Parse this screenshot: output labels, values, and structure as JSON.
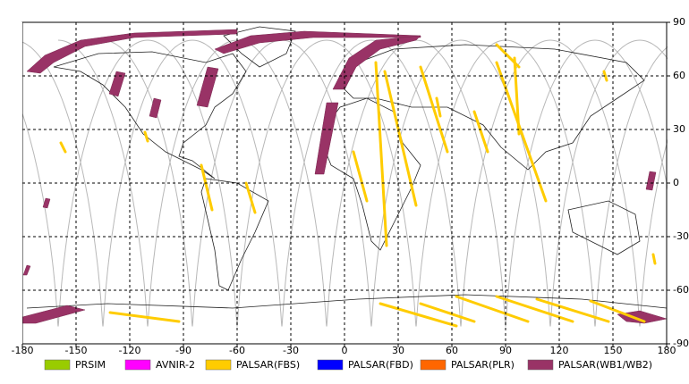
{
  "chart_data": {
    "type": "map",
    "xlim": [
      -180,
      180
    ],
    "ylim": [
      -90,
      90
    ],
    "xticks": [
      -180,
      -150,
      -120,
      -90,
      -60,
      -30,
      0,
      30,
      60,
      90,
      120,
      150,
      180
    ],
    "yticks": [
      -90,
      -60,
      -30,
      0,
      30,
      60,
      90
    ],
    "grid": true,
    "series": [
      {
        "name": "PRSIM",
        "color": "#99cc00"
      },
      {
        "name": "AVNIR-2",
        "color": "#ff00ff"
      },
      {
        "name": "PALSAR(FBS)",
        "color": "#ffcc00"
      },
      {
        "name": "PALSAR(FBD)",
        "color": "#0000ff"
      },
      {
        "name": "PALSAR(PLR)",
        "color": "#ff6600"
      },
      {
        "name": "PALSAR(WB1/WB2)",
        "color": "#993366"
      }
    ]
  }
}
